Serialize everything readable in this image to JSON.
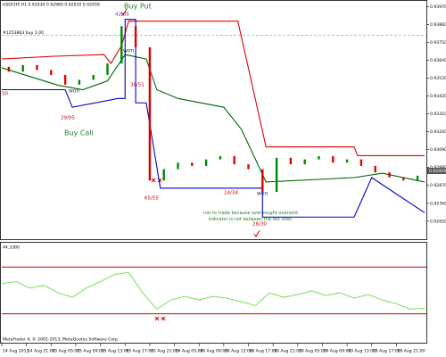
{
  "chart_data": [
    {
      "type": "candlestick",
      "title": "USDCHF,H1 0.92930 0.92960 0.92910 0.92959",
      "x": [
        2,
        6,
        10,
        14,
        18,
        22,
        26,
        30,
        34,
        38,
        42,
        46,
        50,
        54,
        58,
        62,
        66,
        70,
        74,
        78,
        82,
        86,
        90,
        94,
        98,
        102,
        106,
        110,
        114,
        118
      ],
      "open": [
        0.936,
        0.9357,
        0.9361,
        0.9358,
        0.9355,
        0.9349,
        0.9352,
        0.9355,
        0.9362,
        0.9385,
        0.9372,
        0.929,
        0.9297,
        0.9301,
        0.9299,
        0.9303,
        0.9305,
        0.93,
        0.9297,
        0.9283,
        0.9304,
        0.93,
        0.9303,
        0.9305,
        0.9301,
        0.9303,
        0.9299,
        0.9295,
        0.9292,
        0.929
      ],
      "close": [
        0.9357,
        0.9361,
        0.9358,
        0.9355,
        0.9349,
        0.9352,
        0.9355,
        0.9362,
        0.9385,
        0.9372,
        0.929,
        0.9297,
        0.9301,
        0.9299,
        0.9303,
        0.9305,
        0.93,
        0.9297,
        0.9283,
        0.9304,
        0.93,
        0.9303,
        0.9305,
        0.9301,
        0.9303,
        0.9299,
        0.9295,
        0.9292,
        0.929,
        0.9293
      ],
      "up_color": "#008800",
      "down_color": "#dd0000",
      "xlim": [
        0,
        120
      ],
      "xticks": [
        {
          "value": 0,
          "label": "14 Aug 2013"
        },
        {
          "value": 7,
          "label": "14 Aug 21:00"
        },
        {
          "value": 14,
          "label": "15 Aug 05:00"
        },
        {
          "value": 21,
          "label": "15 Aug 09:00"
        },
        {
          "value": 28,
          "label": "15 Aug 13:00"
        },
        {
          "value": 35,
          "label": "15 Aug 17:00"
        },
        {
          "value": 42,
          "label": "15 Aug 21:00"
        },
        {
          "value": 49,
          "label": "16 Aug 05:00"
        },
        {
          "value": 56,
          "label": "16 Aug 09:00"
        },
        {
          "value": 63,
          "label": "16 Aug 13:00"
        },
        {
          "value": 70,
          "label": "16 Aug 17:00"
        },
        {
          "value": 77,
          "label": "16 Aug 21:00"
        },
        {
          "value": 84,
          "label": "19 Aug 05:00"
        },
        {
          "value": 91,
          "label": "19 Aug 09:00"
        },
        {
          "value": 98,
          "label": "19 Aug 13:00"
        },
        {
          "value": 105,
          "label": "19 Aug 17:00"
        },
        {
          "value": 112,
          "label": "19 Aug 21:00"
        }
      ],
      "ylim": [
        0.9255,
        0.94
      ],
      "yticks": [
        {
          "value": 0.9397,
          "label": "0.93970"
        },
        {
          "value": 0.9386,
          "label": "0.93860"
        },
        {
          "value": 0.9375,
          "label": "0.93750"
        },
        {
          "value": 0.9364,
          "label": "0.93640"
        },
        {
          "value": 0.9353,
          "label": "0.93530"
        },
        {
          "value": 0.9342,
          "label": "0.93420"
        },
        {
          "value": 0.9331,
          "label": "0.93310"
        },
        {
          "value": 0.932,
          "label": "0.93200"
        },
        {
          "value": 0.9309,
          "label": "0.93090"
        },
        {
          "value": 0.9298,
          "label": "0.92980"
        },
        {
          "value": 0.9287,
          "label": "0.92870"
        },
        {
          "value": 0.9276,
          "label": "0.92760"
        },
        {
          "value": 0.9265,
          "label": "0.92650"
        }
      ],
      "price_marker": {
        "value": 0.92959,
        "label": "0.92959"
      },
      "order": {
        "label": "#1253863 buy 1.00",
        "price": 0.93794,
        "color": "#33aa33"
      },
      "bands": [
        {
          "color": "#dd0000",
          "x": [
            0,
            15,
            29,
            31,
            34,
            36,
            67,
            75,
            100,
            101,
            120
          ],
          "values": [
            0.93648,
            0.93665,
            0.93675,
            0.93621,
            0.9373,
            0.93881,
            0.93881,
            0.93107,
            0.93107,
            0.93053,
            0.93053
          ]
        },
        {
          "color": "#006600",
          "x": [
            0,
            16,
            23,
            30,
            35,
            41,
            44,
            50,
            63,
            68,
            75,
            100,
            108,
            120
          ],
          "values": [
            0.93594,
            0.93486,
            0.93459,
            0.93513,
            0.93675,
            0.93648,
            0.93459,
            0.93405,
            0.93351,
            0.93216,
            0.92891,
            0.92918,
            0.92945,
            0.92891
          ]
        },
        {
          "color": "#0000cc",
          "x": [
            0,
            18,
            20,
            33,
            35,
            35,
            38,
            38,
            41,
            45,
            74,
            74,
            100,
            105,
            120
          ],
          "values": [
            0.93459,
            0.93459,
            0.93351,
            0.93405,
            0.93405,
            0.93892,
            0.93892,
            0.93378,
            0.93378,
            0.92853,
            0.92853,
            0.92675,
            0.92675,
            0.92918,
            0.92702
          ]
        }
      ],
      "annotations": [
        "Buy Put",
        "42/05",
        "won",
        "38/51",
        "won",
        "29/95",
        "Buy Call",
        "30",
        "65/55",
        "24/34",
        "won",
        "28/30",
        "not to trade because overbought oversold indicator is not between the red lines."
      ],
      "footer": "MetaTrader 4, © 2001-2013, MetaQuotes Software Corp."
    },
    {
      "type": "line",
      "label": "44.3380",
      "x": [
        0,
        4,
        8,
        12,
        16,
        20,
        24,
        28,
        32,
        36,
        40,
        44,
        48,
        52,
        56,
        60,
        64,
        68,
        72,
        76,
        80,
        84,
        88,
        92,
        96,
        100,
        104,
        108,
        112,
        116,
        120
      ],
      "values": [
        55.9,
        57.5,
        52.0,
        54.3,
        48.0,
        44.1,
        52.0,
        57.5,
        63.7,
        65.3,
        48.0,
        33.9,
        41.8,
        44.9,
        41.8,
        44.9,
        43.3,
        40.2,
        37.1,
        48.0,
        44.1,
        46.5,
        49.6,
        45.7,
        48.0,
        43.3,
        46.5,
        41.8,
        38.6,
        33.9,
        34.7
      ],
      "color": "#66dd44",
      "ylim": [
        6,
        90
      ],
      "levels": [
        70,
        30
      ],
      "level_color": "#cc0000"
    }
  ]
}
